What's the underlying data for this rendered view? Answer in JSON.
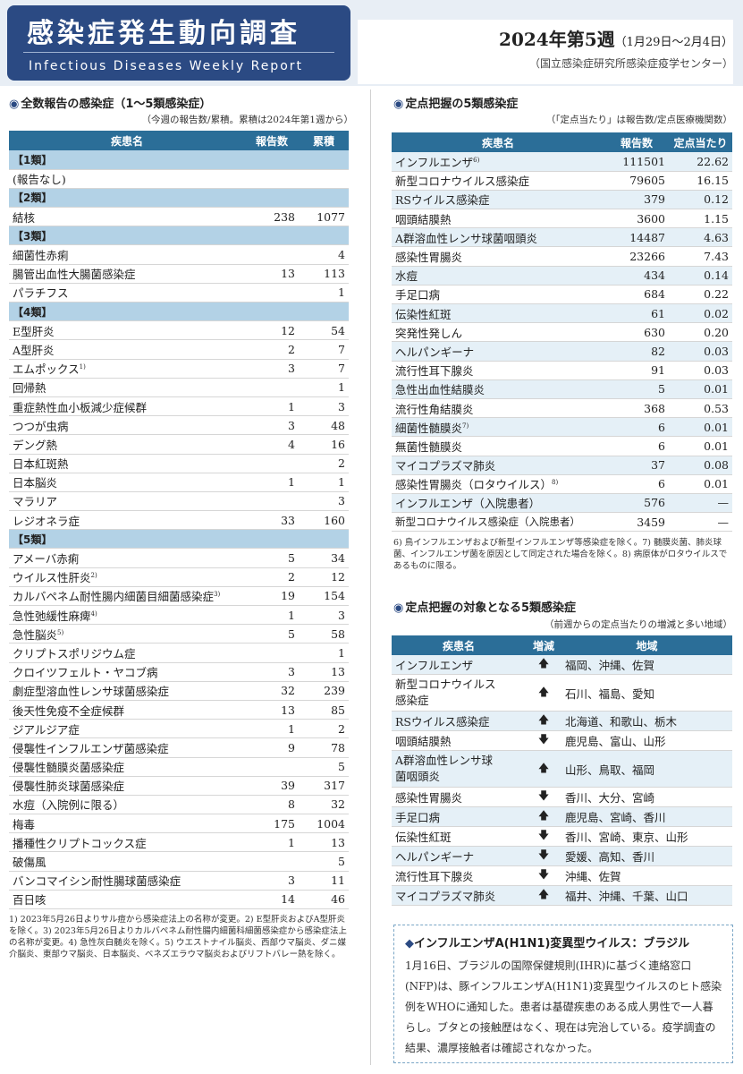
{
  "header": {
    "title_jp": "感染症発生動向調査",
    "title_en": "Infectious Diseases Weekly Report",
    "week": "2024年第5週",
    "week_range": "（1月29日～2月4日）",
    "org": "（国立感染症研究所感染症疫学センター）"
  },
  "all_reports": {
    "section_title": "全数報告の感染症（1～5類感染症）",
    "subtitle": "（今週の報告数/累積。累積は2024年第1週から）",
    "col_name": "疾患名",
    "col_count": "報告数",
    "col_cum": "累積",
    "rows": [
      {
        "cat": "【1類】"
      },
      {
        "name": "(報告なし)",
        "count": "",
        "cum": ""
      },
      {
        "cat": "【2類】"
      },
      {
        "name": "結核",
        "count": "238",
        "cum": "1077"
      },
      {
        "cat": "【3類】"
      },
      {
        "name": "細菌性赤痢",
        "count": "",
        "cum": "4"
      },
      {
        "name": "腸管出血性大腸菌感染症",
        "count": "13",
        "cum": "113"
      },
      {
        "name": "パラチフス",
        "count": "",
        "cum": "1"
      },
      {
        "cat": "【4類】"
      },
      {
        "name": "E型肝炎",
        "count": "12",
        "cum": "54"
      },
      {
        "name": "A型肝炎",
        "count": "2",
        "cum": "7"
      },
      {
        "name": "エムポックス",
        "sup": "1)",
        "count": "3",
        "cum": "7"
      },
      {
        "name": "回帰熱",
        "count": "",
        "cum": "1"
      },
      {
        "name": "重症熱性血小板減少症候群",
        "count": "1",
        "cum": "3"
      },
      {
        "name": "つつが虫病",
        "count": "3",
        "cum": "48"
      },
      {
        "name": "デング熱",
        "count": "4",
        "cum": "16"
      },
      {
        "name": "日本紅斑熱",
        "count": "",
        "cum": "2"
      },
      {
        "name": "日本脳炎",
        "count": "1",
        "cum": "1"
      },
      {
        "name": "マラリア",
        "count": "",
        "cum": "3"
      },
      {
        "name": "レジオネラ症",
        "count": "33",
        "cum": "160"
      },
      {
        "cat": "【5類】"
      },
      {
        "name": "アメーバ赤痢",
        "count": "5",
        "cum": "34"
      },
      {
        "name": "ウイルス性肝炎",
        "sup": "2)",
        "count": "2",
        "cum": "12"
      },
      {
        "name": "カルバペネム耐性腸内細菌目細菌感染症",
        "sup": "3)",
        "count": "19",
        "cum": "154"
      },
      {
        "name": "急性弛緩性麻痺",
        "sup": "4)",
        "count": "1",
        "cum": "3"
      },
      {
        "name": "急性脳炎",
        "sup": "5)",
        "count": "5",
        "cum": "58"
      },
      {
        "name": "クリプトスポリジウム症",
        "count": "",
        "cum": "1"
      },
      {
        "name": "クロイツフェルト・ヤコブ病",
        "count": "3",
        "cum": "13"
      },
      {
        "name": "劇症型溶血性レンサ球菌感染症",
        "count": "32",
        "cum": "239"
      },
      {
        "name": "後天性免疫不全症候群",
        "count": "13",
        "cum": "85"
      },
      {
        "name": "ジアルジア症",
        "count": "1",
        "cum": "2"
      },
      {
        "name": "侵襲性インフルエンザ菌感染症",
        "count": "9",
        "cum": "78"
      },
      {
        "name": "侵襲性髄膜炎菌感染症",
        "count": "",
        "cum": "5"
      },
      {
        "name": "侵襲性肺炎球菌感染症",
        "count": "39",
        "cum": "317"
      },
      {
        "name": "水痘（入院例に限る）",
        "count": "8",
        "cum": "32"
      },
      {
        "name": "梅毒",
        "count": "175",
        "cum": "1004"
      },
      {
        "name": "播種性クリプトコックス症",
        "count": "1",
        "cum": "13"
      },
      {
        "name": "破傷風",
        "count": "",
        "cum": "5"
      },
      {
        "name": "バンコマイシン耐性腸球菌感染症",
        "count": "3",
        "cum": "11"
      },
      {
        "name": "百日咳",
        "count": "14",
        "cum": "46"
      }
    ],
    "footnote": "1) 2023年5月26日よりサル痘から感染症法上の名称が変更。2) E型肝炎およびA型肝炎を除く。3) 2023年5月26日よりカルバペネム耐性腸内細菌科細菌感染症から感染症法上の名称が変更。4) 急性灰白髄炎を除く。5) ウエストナイル脳炎、西部ウマ脳炎、ダニ媒介脳炎、東部ウマ脳炎、日本脳炎、ベネズエラウマ脳炎およびリフトバレー熱を除く。"
  },
  "sentinel": {
    "section_title": "定点把握の5類感染症",
    "subtitle": "（「定点当たり」は報告数/定点医療機関数）",
    "col_name": "疾患名",
    "col_count": "報告数",
    "col_per": "定点当たり",
    "rows": [
      {
        "name": "インフルエンザ",
        "sup": "6)",
        "count": "111501",
        "per": "22.62"
      },
      {
        "name": "新型コロナウイルス感染症",
        "count": "79605",
        "per": "16.15"
      },
      {
        "name": "RSウイルス感染症",
        "count": "379",
        "per": "0.12"
      },
      {
        "name": "咽頭結膜熱",
        "count": "3600",
        "per": "1.15"
      },
      {
        "name": "A群溶血性レンサ球菌咽頭炎",
        "count": "14487",
        "per": "4.63"
      },
      {
        "name": "感染性胃腸炎",
        "count": "23266",
        "per": "7.43"
      },
      {
        "name": "水痘",
        "count": "434",
        "per": "0.14"
      },
      {
        "name": "手足口病",
        "count": "684",
        "per": "0.22"
      },
      {
        "name": "伝染性紅斑",
        "count": "61",
        "per": "0.02"
      },
      {
        "name": "突発性発しん",
        "count": "630",
        "per": "0.20"
      },
      {
        "name": "ヘルパンギーナ",
        "count": "82",
        "per": "0.03"
      },
      {
        "name": "流行性耳下腺炎",
        "count": "91",
        "per": "0.03"
      },
      {
        "name": "急性出血性結膜炎",
        "count": "5",
        "per": "0.01"
      },
      {
        "name": "流行性角結膜炎",
        "count": "368",
        "per": "0.53"
      },
      {
        "name": "細菌性髄膜炎",
        "sup": "7)",
        "count": "6",
        "per": "0.01"
      },
      {
        "name": "無菌性髄膜炎",
        "count": "6",
        "per": "0.01"
      },
      {
        "name": "マイコプラズマ肺炎",
        "count": "37",
        "per": "0.08"
      },
      {
        "name": "感染性胃腸炎（ロタウイルス）",
        "sup": "8)",
        "count": "6",
        "per": "0.01"
      },
      {
        "name": "インフルエンザ（入院患者）",
        "count": "576",
        "per": "—"
      },
      {
        "name": "新型コロナウイルス感染症（入院患者）",
        "count": "3459",
        "per": "—"
      }
    ],
    "footnote": "6) 鳥インフルエンザおよび新型インフルエンザ等感染症を除く。7) 髄膜炎菌、肺炎球菌、インフルエンザ菌を原因として同定された場合を除く。8) 病原体がロタウイルスであるものに限る。"
  },
  "trends": {
    "section_title": "定点把握の対象となる5類感染症",
    "subtitle": "（前週からの定点当たりの増減と多い地域）",
    "col_name": "疾患名",
    "col_change": "増減",
    "col_region": "地域",
    "rows": [
      {
        "name": "インフルエンザ",
        "dir": "up",
        "arrow": "🡅",
        "regions": "福岡、沖縄、佐賀"
      },
      {
        "name": "新型コロナウイルス",
        "name2": "感染症",
        "dir": "up",
        "arrow": "🡅",
        "regions": "石川、福島、愛知"
      },
      {
        "name": "RSウイルス感染症",
        "dir": "up",
        "arrow": "🡅",
        "regions": "北海道、和歌山、栃木"
      },
      {
        "name": "咽頭結膜熱",
        "dir": "down",
        "arrow": "🡇",
        "regions": "鹿児島、富山、山形"
      },
      {
        "name": "A群溶血性レンサ球",
        "name2": "菌咽頭炎",
        "dir": "up",
        "arrow": "🡅",
        "regions": "山形、鳥取、福岡"
      },
      {
        "name": "感染性胃腸炎",
        "dir": "down",
        "arrow": "🡇",
        "regions": "香川、大分、宮崎"
      },
      {
        "name": "手足口病",
        "dir": "up",
        "arrow": "🡅",
        "regions": "鹿児島、宮崎、香川"
      },
      {
        "name": "伝染性紅斑",
        "dir": "down",
        "arrow": "🡇",
        "regions": "香川、宮崎、東京、山形"
      },
      {
        "name": "ヘルパンギーナ",
        "dir": "down",
        "arrow": "🡇",
        "regions": "愛媛、高知、香川"
      },
      {
        "name": "流行性耳下腺炎",
        "dir": "down",
        "arrow": "🡇",
        "regions": "沖縄、佐賀"
      },
      {
        "name": "マイコプラズマ肺炎",
        "dir": "up",
        "arrow": "🡅",
        "regions": "福井、沖縄、千葉、山口"
      }
    ]
  },
  "h1n1": {
    "title": "インフルエンザA(H1N1)変異型ウイルス：ブラジル",
    "body": "1月16日、ブラジルの国際保健規則(IHR)に基づく連絡窓口(NFP)は、豚インフルエンザA(H1N1)変異型ウイルスのヒト感染例をWHOに通知した。患者は基礎疾患のある成人男性で一人暮らし。ブタとの接触歴はなく、現在は完治している。疫学調査の結果、濃厚接触者は確認されなかった。"
  },
  "colors": {
    "header_blue": "#2b4a83",
    "table_head": "#2b6e98",
    "category_row": "#b3d2e6",
    "alt_row": "#e5f0f7"
  }
}
